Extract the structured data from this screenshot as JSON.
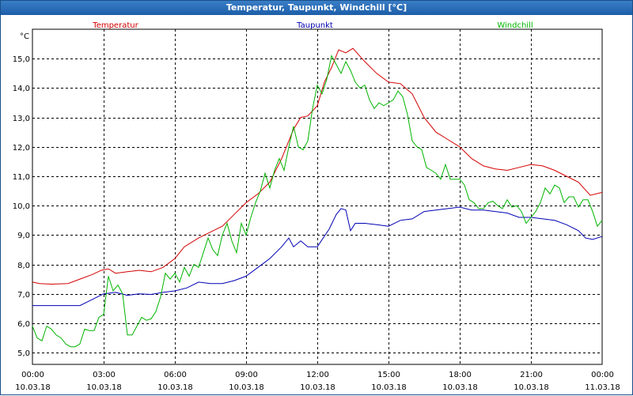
{
  "window": {
    "title": "Temperatur, Taupunkt, Windchill [°C]"
  },
  "colors": {
    "temperatur": "#d40000",
    "taupunkt": "#0000b4",
    "windchill": "#00b400",
    "grid": "#000000"
  },
  "chart_data": {
    "type": "line",
    "title": "Temperatur, Taupunkt, Windchill [°C]",
    "ylabel": "°C",
    "xlabel": "",
    "ylim": [
      4.6,
      16.0
    ],
    "xlim": [
      0,
      24
    ],
    "grid": true,
    "yticks": [
      "5,0",
      "6,0",
      "7,0",
      "8,0",
      "9,0",
      "10,0",
      "11,0",
      "12,0",
      "13,0",
      "14,0",
      "15,0"
    ],
    "xticks": [
      {
        "time": "00:00",
        "date": "10.03.18"
      },
      {
        "time": "03:00",
        "date": "10.03.18"
      },
      {
        "time": "06:00",
        "date": "10.03.18"
      },
      {
        "time": "09:00",
        "date": "10.03.18"
      },
      {
        "time": "12:00",
        "date": "10.03.18"
      },
      {
        "time": "15:00",
        "date": "10.03.18"
      },
      {
        "time": "18:00",
        "date": "10.03.18"
      },
      {
        "time": "21:00",
        "date": "10.03.18"
      },
      {
        "time": "00:00",
        "date": "11.03.18"
      }
    ],
    "series": [
      {
        "name": "Temperatur",
        "color": "#d40000",
        "x": [
          0,
          0.3,
          0.8,
          1.5,
          2.0,
          2.5,
          2.9,
          3.2,
          3.5,
          4.0,
          4.5,
          5.0,
          5.5,
          6.0,
          6.4,
          7.0,
          7.5,
          8.0,
          8.5,
          9.0,
          9.5,
          10.0,
          10.5,
          11.0,
          11.3,
          11.6,
          12.0,
          12.3,
          12.6,
          12.9,
          13.2,
          13.5,
          14.0,
          14.5,
          15.0,
          15.5,
          16.0,
          16.5,
          17.0,
          17.5,
          18.0,
          18.5,
          19.0,
          19.5,
          20.0,
          20.5,
          21.0,
          21.5,
          22.0,
          22.5,
          23.0,
          23.5,
          24.0
        ],
        "values": [
          7.4,
          7.35,
          7.33,
          7.35,
          7.5,
          7.65,
          7.8,
          7.85,
          7.7,
          7.75,
          7.8,
          7.75,
          7.9,
          8.2,
          8.6,
          8.9,
          9.1,
          9.3,
          9.7,
          10.1,
          10.4,
          10.8,
          11.6,
          12.6,
          13.0,
          13.05,
          13.4,
          14.2,
          14.7,
          15.3,
          15.2,
          15.35,
          14.9,
          14.5,
          14.2,
          14.15,
          13.8,
          13.0,
          12.5,
          12.25,
          12.0,
          11.6,
          11.35,
          11.25,
          11.2,
          11.3,
          11.4,
          11.35,
          11.2,
          11.0,
          10.8,
          10.35,
          10.45
        ]
      },
      {
        "name": "Taupunkt",
        "color": "#0000b4",
        "x": [
          0,
          1.0,
          2.0,
          2.5,
          3.0,
          3.5,
          4.0,
          4.5,
          5.0,
          5.5,
          6.0,
          6.5,
          7.0,
          7.5,
          8.0,
          8.5,
          9.0,
          9.5,
          10.0,
          10.5,
          10.8,
          11.0,
          11.3,
          11.6,
          12.0,
          12.5,
          12.8,
          13.0,
          13.2,
          13.4,
          13.6,
          14.0,
          14.5,
          15.0,
          15.5,
          16.0,
          16.5,
          17.0,
          17.5,
          18.0,
          18.5,
          19.0,
          19.5,
          20.0,
          20.5,
          21.0,
          21.5,
          22.0,
          22.5,
          23.0,
          23.3,
          23.6,
          24.0
        ],
        "values": [
          6.6,
          6.6,
          6.6,
          6.8,
          7.0,
          7.05,
          6.95,
          7.0,
          6.98,
          7.05,
          7.1,
          7.2,
          7.4,
          7.35,
          7.35,
          7.45,
          7.6,
          7.9,
          8.2,
          8.6,
          8.9,
          8.6,
          8.8,
          8.6,
          8.6,
          9.2,
          9.7,
          9.9,
          9.85,
          9.15,
          9.4,
          9.4,
          9.35,
          9.3,
          9.5,
          9.55,
          9.8,
          9.85,
          9.9,
          9.95,
          9.85,
          9.85,
          9.8,
          9.75,
          9.6,
          9.6,
          9.55,
          9.5,
          9.35,
          9.15,
          8.9,
          8.85,
          8.95
        ]
      },
      {
        "name": "Windchill",
        "color": "#00b400",
        "x": [
          0,
          0.2,
          0.4,
          0.6,
          0.8,
          1.0,
          1.2,
          1.4,
          1.6,
          1.8,
          2.0,
          2.2,
          2.4,
          2.6,
          2.8,
          3.0,
          3.2,
          3.4,
          3.6,
          3.8,
          4.0,
          4.2,
          4.4,
          4.6,
          4.8,
          5.0,
          5.2,
          5.4,
          5.6,
          5.8,
          6.0,
          6.2,
          6.4,
          6.6,
          6.8,
          7.0,
          7.2,
          7.4,
          7.6,
          7.8,
          8.0,
          8.2,
          8.4,
          8.6,
          8.8,
          9.0,
          9.2,
          9.4,
          9.6,
          9.8,
          10.0,
          10.2,
          10.4,
          10.6,
          10.8,
          11.0,
          11.2,
          11.4,
          11.6,
          11.8,
          12.0,
          12.2,
          12.4,
          12.6,
          12.8,
          13.0,
          13.2,
          13.4,
          13.6,
          13.8,
          14.0,
          14.2,
          14.4,
          14.6,
          14.8,
          15.0,
          15.2,
          15.4,
          15.6,
          15.8,
          16.0,
          16.2,
          16.4,
          16.6,
          16.8,
          17.0,
          17.2,
          17.4,
          17.6,
          17.8,
          18.0,
          18.2,
          18.4,
          18.6,
          18.8,
          19.0,
          19.2,
          19.4,
          19.6,
          19.8,
          20.0,
          20.2,
          20.4,
          20.6,
          20.8,
          21.0,
          21.2,
          21.4,
          21.6,
          21.8,
          22.0,
          22.2,
          22.4,
          22.6,
          22.8,
          23.0,
          23.2,
          23.4,
          23.6,
          23.8,
          24.0
        ],
        "values": [
          5.9,
          5.5,
          5.4,
          5.9,
          5.8,
          5.6,
          5.5,
          5.3,
          5.2,
          5.2,
          5.3,
          5.8,
          5.75,
          5.75,
          6.2,
          6.3,
          7.6,
          7.1,
          7.3,
          7.0,
          5.6,
          5.6,
          5.9,
          6.2,
          6.1,
          6.15,
          6.4,
          6.9,
          7.7,
          7.5,
          7.7,
          7.4,
          7.9,
          7.6,
          8.0,
          7.9,
          8.4,
          8.9,
          8.5,
          8.3,
          9.0,
          9.4,
          8.8,
          8.4,
          9.4,
          9.0,
          9.6,
          10.1,
          10.5,
          11.1,
          10.6,
          11.2,
          11.6,
          11.2,
          12.0,
          12.7,
          12.0,
          11.9,
          12.2,
          13.3,
          14.1,
          13.8,
          14.3,
          15.1,
          14.8,
          14.5,
          14.9,
          14.6,
          14.2,
          14.0,
          14.1,
          13.6,
          13.3,
          13.5,
          13.4,
          13.5,
          13.6,
          13.9,
          13.7,
          13.1,
          12.2,
          12.0,
          11.9,
          11.3,
          11.2,
          11.1,
          10.9,
          11.4,
          10.9,
          10.9,
          10.9,
          10.7,
          10.2,
          10.1,
          9.9,
          9.9,
          10.1,
          10.15,
          10.0,
          9.9,
          10.2,
          9.95,
          10.0,
          9.8,
          9.4,
          9.6,
          9.8,
          10.1,
          10.6,
          10.4,
          10.7,
          10.6,
          10.1,
          10.3,
          10.3,
          9.95,
          10.2,
          10.2,
          9.8,
          9.3,
          9.5
        ]
      }
    ]
  }
}
